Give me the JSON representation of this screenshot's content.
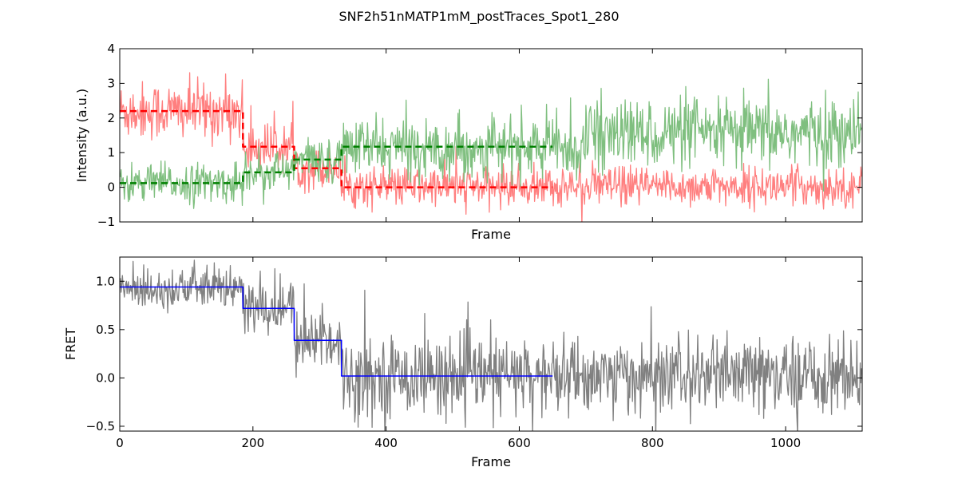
{
  "title": "SNF2h51nMATP1mM_postTraces_Spot1_280",
  "colors": {
    "donor": "#ff7f7f",
    "acceptor": "#7fbf7f",
    "donor_fit": "#ff0000",
    "acceptor_fit": "#008000",
    "fret": "#808080",
    "fret_fit": "#0000ff"
  },
  "chart_data": [
    {
      "type": "line",
      "xlabel": "Frame",
      "ylabel": "Intensity (a.u.)",
      "xlim": [
        0,
        1115
      ],
      "ylim": [
        -1,
        4
      ],
      "xticks": [
        0,
        200,
        400,
        600,
        800,
        1000
      ],
      "yticks": [
        -1,
        0,
        1,
        2,
        3,
        4
      ],
      "ytick_labels": [
        "−1",
        "0",
        "1",
        "2",
        "3",
        "4"
      ],
      "xtick_labels_visible": false,
      "grid": false,
      "series": [
        {
          "role": "donor-trace",
          "style": "solid",
          "segments": [
            {
              "x_start": 0,
              "x_end": 185,
              "level": 2.2,
              "noise": 0.42
            },
            {
              "x_start": 185,
              "x_end": 262,
              "level": 1.15,
              "noise": 0.35
            },
            {
              "x_start": 262,
              "x_end": 333,
              "level": 0.55,
              "noise": 0.3
            },
            {
              "x_start": 333,
              "x_end": 1115,
              "level": 0.02,
              "noise": 0.28
            }
          ]
        },
        {
          "role": "acceptor-trace",
          "style": "solid",
          "segments": [
            {
              "x_start": 0,
              "x_end": 185,
              "level": 0.12,
              "noise": 0.28
            },
            {
              "x_start": 185,
              "x_end": 262,
              "level": 0.45,
              "noise": 0.3
            },
            {
              "x_start": 262,
              "x_end": 333,
              "level": 0.8,
              "noise": 0.32
            },
            {
              "x_start": 333,
              "x_end": 700,
              "level": 1.15,
              "noise": 0.42
            },
            {
              "x_start": 700,
              "x_end": 1115,
              "level": 1.55,
              "noise": 0.5
            }
          ]
        },
        {
          "role": "donor-fit",
          "style": "dashed",
          "steps": [
            [
              0,
              2.2
            ],
            [
              185,
              1.17
            ],
            [
              262,
              0.55
            ],
            [
              333,
              0.0
            ],
            [
              650,
              0.0
            ]
          ]
        },
        {
          "role": "acceptor-fit",
          "style": "dashed",
          "steps": [
            [
              0,
              0.12
            ],
            [
              185,
              0.43
            ],
            [
              262,
              0.8
            ],
            [
              333,
              1.17
            ],
            [
              650,
              1.17
            ]
          ]
        }
      ]
    },
    {
      "type": "line",
      "xlabel": "Frame",
      "ylabel": "FRET",
      "xlim": [
        0,
        1115
      ],
      "ylim": [
        -0.55,
        1.25
      ],
      "xticks": [
        0,
        200,
        400,
        600,
        800,
        1000
      ],
      "xtick_labels": [
        "0",
        "200",
        "400",
        "600",
        "800",
        "1000"
      ],
      "yticks": [
        -0.5,
        0.0,
        0.5,
        1.0
      ],
      "ytick_labels": [
        "−0.5",
        "0.0",
        "0.5",
        "1.0"
      ],
      "grid": false,
      "series": [
        {
          "role": "fret-trace",
          "style": "solid",
          "segments": [
            {
              "x_start": 0,
              "x_end": 185,
              "level": 0.93,
              "noise": 0.11
            },
            {
              "x_start": 185,
              "x_end": 262,
              "level": 0.72,
              "noise": 0.15
            },
            {
              "x_start": 262,
              "x_end": 333,
              "level": 0.4,
              "noise": 0.17
            },
            {
              "x_start": 333,
              "x_end": 1115,
              "level": 0.02,
              "noise": 0.2
            }
          ]
        },
        {
          "role": "fret-fit",
          "style": "solid",
          "steps": [
            [
              0,
              0.94
            ],
            [
              185,
              0.72
            ],
            [
              262,
              0.39
            ],
            [
              333,
              0.02
            ],
            [
              650,
              0.02
            ]
          ]
        }
      ]
    }
  ]
}
